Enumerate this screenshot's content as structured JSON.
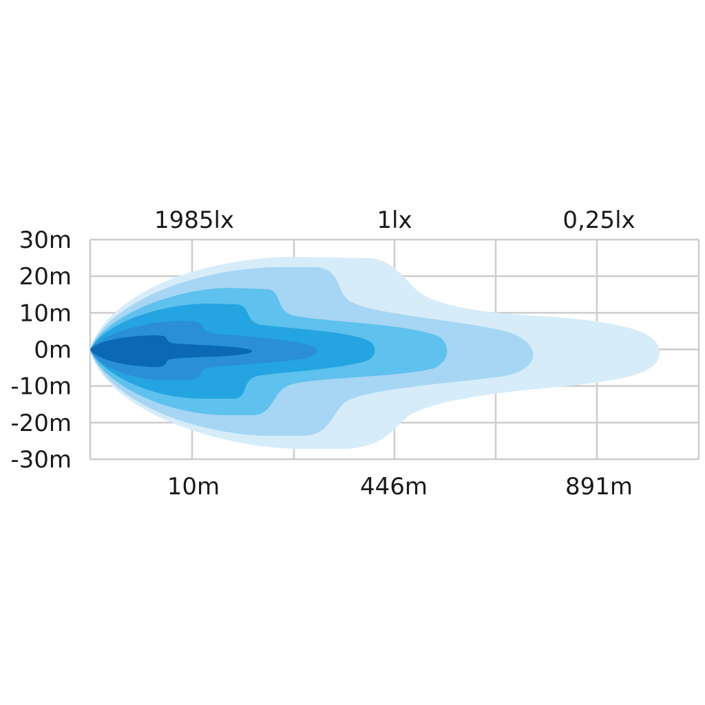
{
  "chart_data": {
    "type": "area",
    "title": "",
    "lux_labels": [
      "1985lx",
      "1lx",
      "0,25lx"
    ],
    "x_tick_labels": [
      "10m",
      "446m",
      "891m"
    ],
    "y_tick_labels": [
      "30m",
      "20m",
      "10m",
      "0m",
      "-10m",
      "-20m",
      "-30m"
    ],
    "ylim": [
      -30,
      30
    ],
    "grid": true,
    "isolux_layer_colors": [
      "#d6ecf9",
      "#a6d6f3",
      "#5ec1ee",
      "#24a4e0",
      "#2a8fd4",
      "#0a68b4"
    ],
    "grid_color": "#cccccc"
  }
}
